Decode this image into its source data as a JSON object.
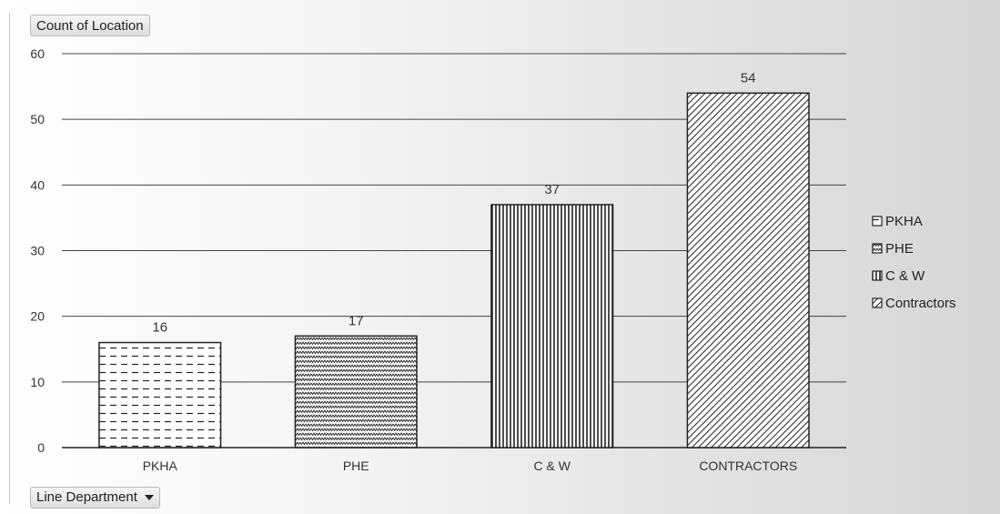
{
  "chart_data": {
    "type": "bar",
    "categories": [
      "PKHA",
      "PHE",
      "C & W",
      "CONTRACTORS"
    ],
    "values": [
      16,
      17,
      37,
      54
    ],
    "ylim": [
      0,
      60
    ],
    "yticks": [
      0,
      10,
      20,
      30,
      40,
      50,
      60
    ],
    "data_labels": [
      "16",
      "17",
      "37",
      "54"
    ],
    "grid": true,
    "legend_position": "right",
    "legend": [
      "PKHA",
      "PHE",
      "C & W",
      "Contractors"
    ],
    "patterns": [
      "dashes",
      "zigzag",
      "vertical-lines",
      "diagonal-lines"
    ]
  },
  "pivot": {
    "values_field": "Count of Location",
    "axis_field": "Line Department"
  },
  "colors": {
    "ink": "#222222",
    "grid": "#444444",
    "bar_fill": "#ffffff"
  }
}
